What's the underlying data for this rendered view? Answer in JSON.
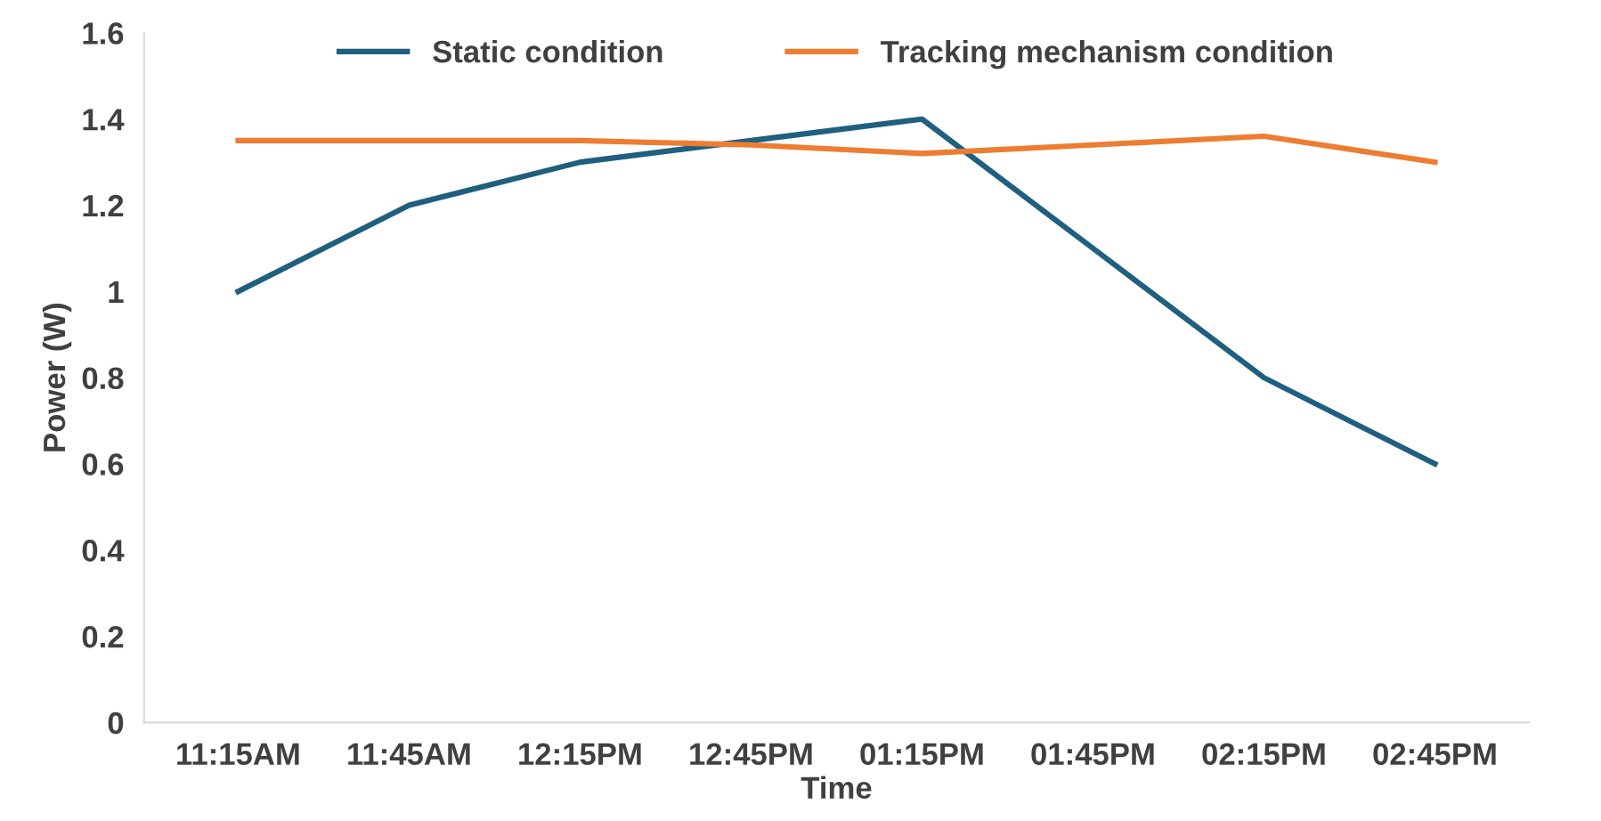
{
  "chart_data": {
    "type": "line",
    "xlabel": "Time",
    "ylabel": "Power (W)",
    "categories": [
      "11:15AM",
      "11:45AM",
      "12:15PM",
      "12:45PM",
      "01:15PM",
      "01:45PM",
      "02:15PM",
      "02:45PM"
    ],
    "series": [
      {
        "name": "Static condition",
        "color": "#1f5f7f",
        "values": [
          1.0,
          1.2,
          1.3,
          1.35,
          1.4,
          1.1,
          0.8,
          0.6
        ]
      },
      {
        "name": "Tracking mechanism condition",
        "color": "#ed7d31",
        "values": [
          1.35,
          1.35,
          1.35,
          1.34,
          1.32,
          1.34,
          1.36,
          1.3
        ]
      }
    ],
    "ylim": [
      0,
      1.6
    ],
    "yticks": [
      0,
      0.2,
      0.4,
      0.6,
      0.8,
      1,
      1.2,
      1.4,
      1.6
    ],
    "grid": false,
    "legend": "top",
    "marker": "none",
    "line_style": "solid"
  }
}
